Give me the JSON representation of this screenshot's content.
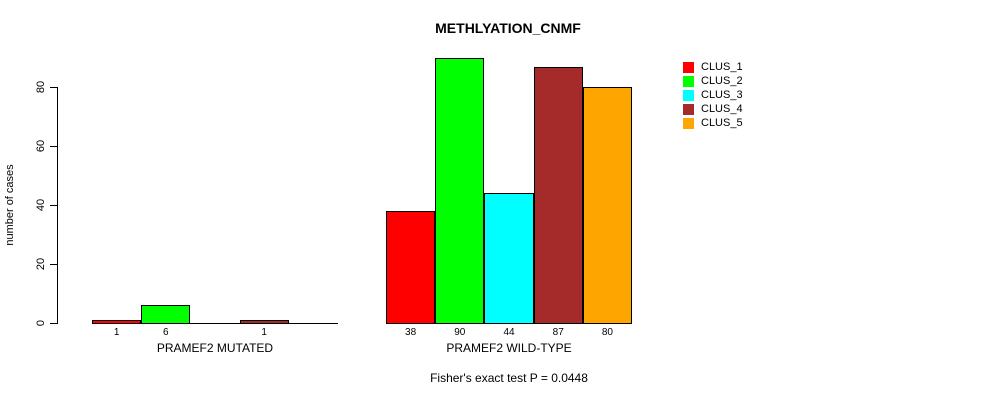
{
  "title": "METHLYATION_CNMF",
  "y_axis": {
    "label": "number of cases"
  },
  "footer": "Fisher's exact test P = 0.0448",
  "legend": {
    "items": [
      {
        "label": "CLUS_1",
        "color": "#FF0000"
      },
      {
        "label": "CLUS_2",
        "color": "#00FF00"
      },
      {
        "label": "CLUS_3",
        "color": "#00FFFF"
      },
      {
        "label": "CLUS_4",
        "color": "#A52A2A"
      },
      {
        "label": "CLUS_5",
        "color": "#FFA500"
      }
    ]
  },
  "chart_data": {
    "type": "bar",
    "title": "METHLYATION_CNMF",
    "ylabel": "number of cases",
    "ylim": [
      0,
      90
    ],
    "y_ticks": [
      0,
      20,
      40,
      60,
      80
    ],
    "grid": false,
    "legend_position": "right",
    "categories": [
      "CLUS_1",
      "CLUS_2",
      "CLUS_3",
      "CLUS_4",
      "CLUS_5"
    ],
    "series_colors": [
      "#FF0000",
      "#00FF00",
      "#00FFFF",
      "#A52A2A",
      "#FFA500"
    ],
    "groups": [
      {
        "label": "PRAMEF2 MUTATED",
        "values": [
          1,
          6,
          0,
          1,
          0
        ],
        "bar_labels": [
          "1",
          "6",
          "",
          "1",
          ""
        ]
      },
      {
        "label": "PRAMEF2 WILD-TYPE",
        "values": [
          38,
          90,
          44,
          87,
          80
        ],
        "bar_labels": [
          "38",
          "90",
          "44",
          "87",
          "80"
        ]
      }
    ],
    "annotation": "Fisher's exact test P = 0.0448"
  }
}
